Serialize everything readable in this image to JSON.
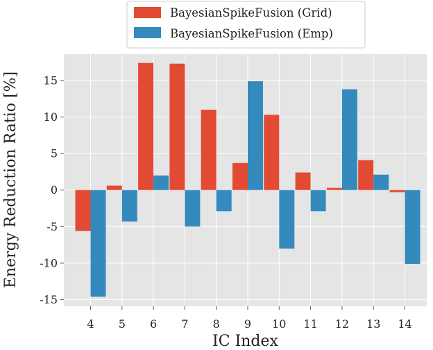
{
  "chart_data": {
    "type": "bar",
    "title": "",
    "xlabel": "IC Index",
    "ylabel": "Energy Reduction Ratio [%]",
    "categories": [
      "4",
      "5",
      "6",
      "7",
      "8",
      "9",
      "10",
      "11",
      "12",
      "13",
      "14"
    ],
    "series": [
      {
        "name": "BayesianSpikeFusion (Grid)",
        "color": "#e24a33",
        "values": [
          -5.6,
          0.6,
          17.4,
          17.3,
          11.0,
          3.7,
          10.3,
          2.4,
          0.3,
          4.1,
          -0.3
        ]
      },
      {
        "name": "BayesianSpikeFusion (Emp)",
        "color": "#348abd",
        "values": [
          -14.6,
          -4.3,
          2.0,
          -5.0,
          -2.9,
          14.9,
          -8.0,
          -2.9,
          13.8,
          2.1,
          -10.1
        ]
      }
    ],
    "ylim": [
      -15.9,
      18.6
    ],
    "yticks": [
      -15,
      -10,
      -5,
      0,
      5,
      10,
      15
    ],
    "grid": true,
    "background": "#e5e5e5",
    "legend_position": "top-center"
  }
}
